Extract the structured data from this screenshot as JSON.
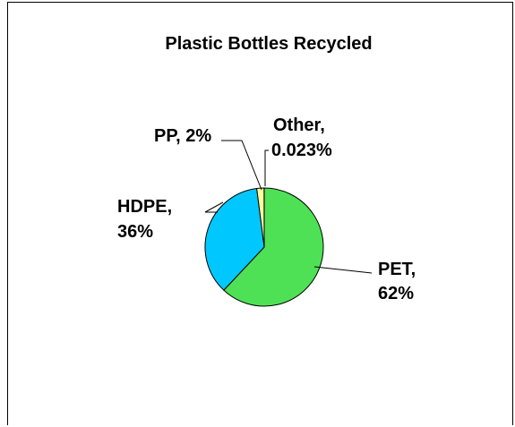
{
  "chart_data": {
    "type": "pie",
    "title": "Plastic Bottles Recycled",
    "slices": [
      {
        "label": "PET",
        "value": 62,
        "value_label": "62%",
        "color": "#4ee155"
      },
      {
        "label": "HDPE",
        "value": 36,
        "value_label": "36%",
        "color": "#00c8ff"
      },
      {
        "label": "PP",
        "value": 2,
        "value_label": "2%",
        "color": "#ffff99"
      },
      {
        "label": "Other",
        "value": 0.023,
        "value_label": "0.023%",
        "color": "#8b4aa0"
      }
    ],
    "legend": "none",
    "label_text": {
      "pet_name": "PET,",
      "pet_pct": "62%",
      "hdpe_name": "HDPE,",
      "hdpe_pct": "36%",
      "pp_full": "PP, 2%",
      "other_name": "Other,",
      "other_pct": "0.023%"
    }
  }
}
